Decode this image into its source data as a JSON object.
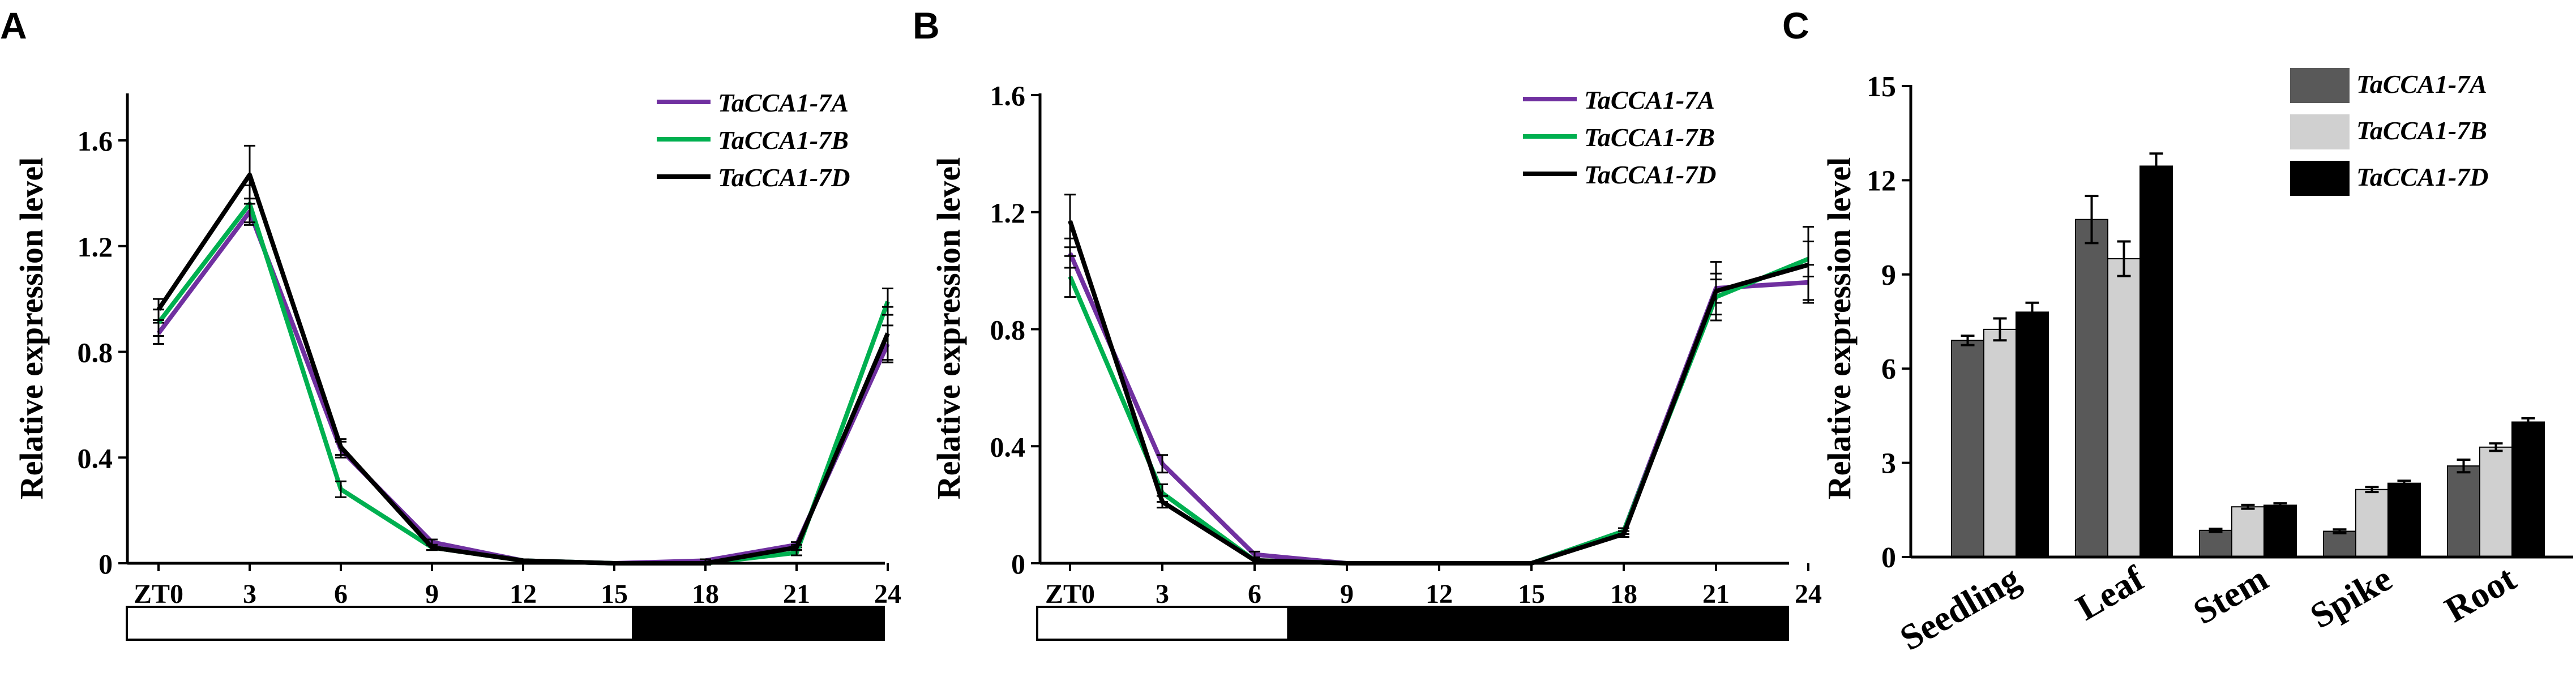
{
  "colors": {
    "TaCCA1-7A_line": "#7030a0",
    "TaCCA1-7B_line": "#00b050",
    "TaCCA1-7D_line": "#000000",
    "TaCCA1-7A_bar": "#595959",
    "TaCCA1-7B_bar": "#d0d0d0",
    "TaCCA1-7D_bar": "#000000"
  },
  "chart_data": [
    {
      "panel": "A",
      "type": "line",
      "ylabel": "Relative expression level",
      "xlabel": "",
      "x": [
        "ZT0",
        "3",
        "6",
        "9",
        "12",
        "15",
        "18",
        "21",
        "24"
      ],
      "ylim": [
        0,
        1.6
      ],
      "yticks": [
        "0",
        "0.4",
        "0.8",
        "1.2",
        "1.6"
      ],
      "legend_position": "top-right",
      "series": [
        {
          "name": "TaCCA1-7A",
          "values": [
            0.87,
            1.33,
            0.43,
            0.08,
            0.01,
            0.0,
            0.01,
            0.07,
            0.83
          ],
          "err": [
            0.04,
            0.05,
            0.03,
            0.01,
            0.005,
            0.004,
            0.005,
            0.01,
            0.07
          ]
        },
        {
          "name": "TaCCA1-7B",
          "values": [
            0.91,
            1.36,
            0.28,
            0.06,
            0.01,
            0.0,
            0.0,
            0.04,
            0.99
          ],
          "err": [
            0.05,
            0.07,
            0.03,
            0.01,
            0.005,
            0.004,
            0.005,
            0.01,
            0.05
          ]
        },
        {
          "name": "TaCCA1-7D",
          "values": [
            0.96,
            1.47,
            0.44,
            0.06,
            0.01,
            0.0,
            0.0,
            0.06,
            0.87
          ],
          "err": [
            0.04,
            0.11,
            0.03,
            0.01,
            0.005,
            0.004,
            0.005,
            0.01,
            0.1
          ]
        }
      ],
      "photoperiod_bar": {
        "light_until": 16,
        "total_hours": 24
      }
    },
    {
      "panel": "B",
      "type": "line",
      "ylabel": "Relative expression level",
      "xlabel": "",
      "x": [
        "ZT0",
        "3",
        "6",
        "9",
        "12",
        "15",
        "18",
        "21",
        "24"
      ],
      "ylim": [
        0,
        1.6
      ],
      "yticks": [
        "0",
        "0.4",
        "0.8",
        "1.2",
        "1.6"
      ],
      "legend_position": "top-right",
      "series": [
        {
          "name": "TaCCA1-7A",
          "values": [
            1.06,
            0.34,
            0.03,
            0.0,
            0.0,
            0.0,
            0.11,
            0.94,
            0.96
          ],
          "err": [
            0.05,
            0.03,
            0.01,
            0.002,
            0.002,
            0.002,
            0.01,
            0.05,
            0.06
          ]
        },
        {
          "name": "TaCCA1-7B",
          "values": [
            0.98,
            0.24,
            0.01,
            0.0,
            0.0,
            0.0,
            0.11,
            0.91,
            1.04
          ],
          "err": [
            0.07,
            0.03,
            0.01,
            0.002,
            0.002,
            0.002,
            0.01,
            0.06,
            0.06
          ]
        },
        {
          "name": "TaCCA1-7D",
          "values": [
            1.17,
            0.21,
            0.01,
            0.0,
            0.0,
            0.0,
            0.1,
            0.93,
            1.02
          ],
          "err": [
            0.09,
            0.02,
            0.01,
            0.002,
            0.002,
            0.002,
            0.01,
            0.1,
            0.13
          ]
        }
      ],
      "photoperiod_bar": {
        "light_until": 8,
        "total_hours": 24
      }
    },
    {
      "panel": "C",
      "type": "bar",
      "ylabel": "Relative expression level",
      "xlabel": "",
      "categories": [
        "Seedling",
        "Leaf",
        "Stem",
        "Spike",
        "Root"
      ],
      "ylim": [
        0,
        15
      ],
      "yticks": [
        "0",
        "3",
        "6",
        "9",
        "12",
        "15"
      ],
      "legend_position": "top-right",
      "series": [
        {
          "name": "TaCCA1-7A",
          "values": [
            6.9,
            10.75,
            0.85,
            0.82,
            2.9
          ],
          "err": [
            0.15,
            0.75,
            0.05,
            0.06,
            0.2
          ]
        },
        {
          "name": "TaCCA1-7B",
          "values": [
            7.25,
            9.5,
            1.6,
            2.15,
            3.5
          ],
          "err": [
            0.35,
            0.55,
            0.06,
            0.08,
            0.12
          ]
        },
        {
          "name": "TaCCA1-7D",
          "values": [
            7.8,
            12.45,
            1.65,
            2.35,
            4.3
          ],
          "err": [
            0.3,
            0.4,
            0.06,
            0.08,
            0.12
          ]
        }
      ]
    }
  ]
}
